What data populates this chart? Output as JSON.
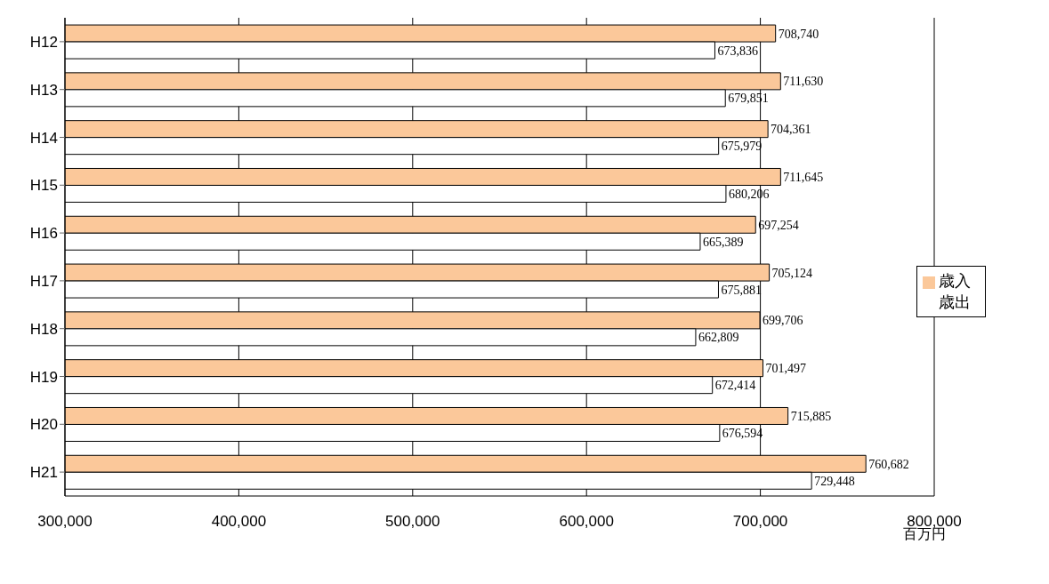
{
  "chart_data": {
    "type": "bar",
    "orientation": "horizontal",
    "xlabel": "百万円",
    "categories": [
      "H12",
      "H13",
      "H14",
      "H15",
      "H16",
      "H17",
      "H18",
      "H19",
      "H20",
      "H21"
    ],
    "series": [
      {
        "name": "歳入",
        "color": "#fbc89a",
        "values": [
          708740,
          711630,
          704361,
          711645,
          697254,
          705124,
          699706,
          701497,
          715885,
          760682
        ],
        "value_labels": [
          "708,740",
          "711,630",
          "704,361",
          "711,645",
          "697,254",
          "705,124",
          "699,706",
          "701,497",
          "715,885",
          "760,682"
        ]
      },
      {
        "name": "歳出",
        "color": "#ffffff",
        "values": [
          673836,
          679851,
          675979,
          680206,
          665389,
          675881,
          662809,
          672414,
          676594,
          729448
        ],
        "value_labels": [
          "673,836",
          "679,851",
          "675,979",
          "680,206",
          "665,389",
          "675,881",
          "662,809",
          "672,414",
          "676,594",
          "729,448"
        ]
      }
    ],
    "xlim": [
      300000,
      800000
    ],
    "xticks": [
      {
        "value": 300000,
        "label": "300,000"
      },
      {
        "value": 400000,
        "label": "400,000"
      },
      {
        "value": 500000,
        "label": "500,000"
      },
      {
        "value": 600000,
        "label": "600,000"
      },
      {
        "value": 700000,
        "label": "700,000"
      },
      {
        "value": 800000,
        "label": "800,000"
      }
    ],
    "grid": "x",
    "legend": "right"
  }
}
